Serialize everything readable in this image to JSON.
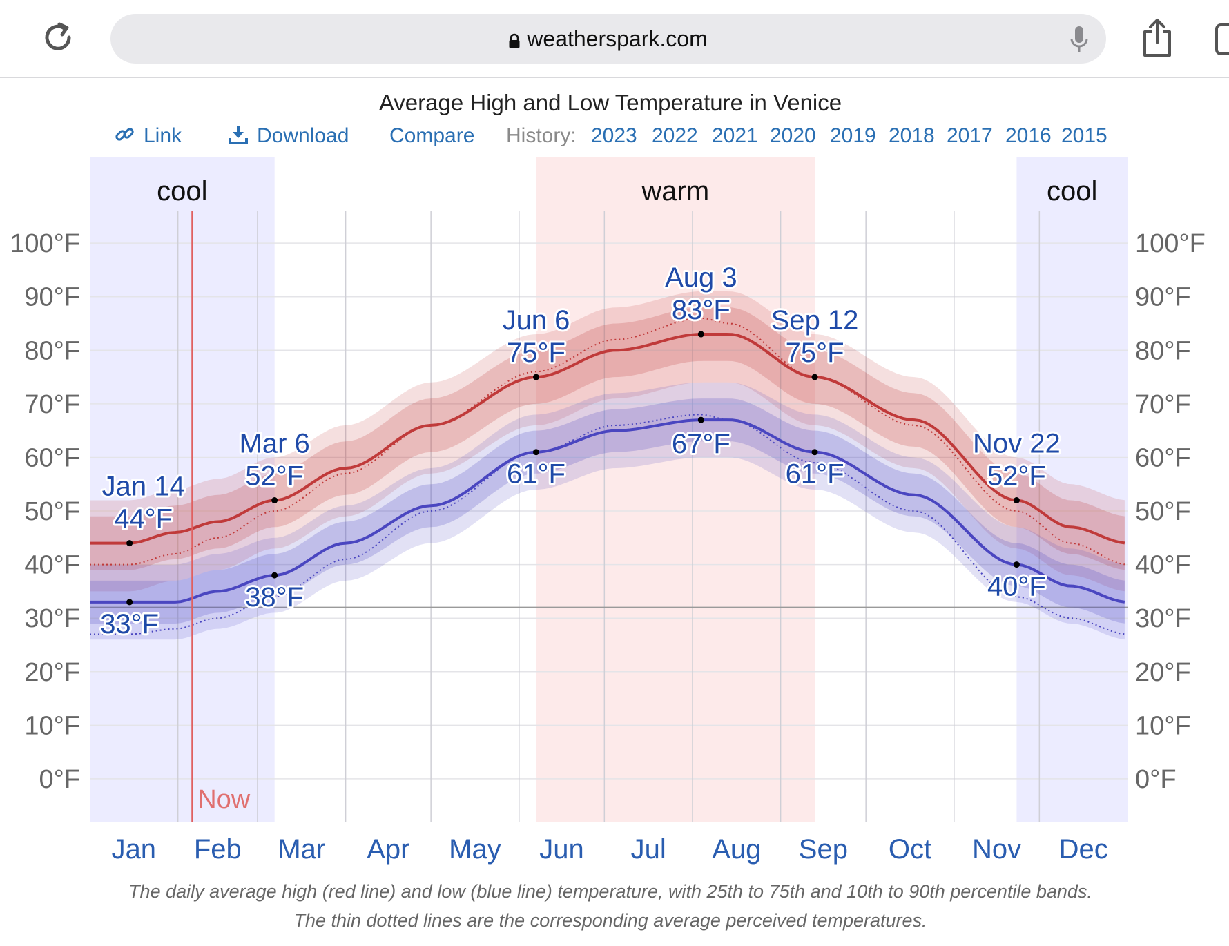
{
  "browser": {
    "url": "weatherspark.com"
  },
  "toolbar": {
    "link_label": "Link",
    "download_label": "Download",
    "compare_label": "Compare",
    "history_label": "History:",
    "years": [
      "2023",
      "2022",
      "2021",
      "2020",
      "2019",
      "2018",
      "2017",
      "2016",
      "2015"
    ]
  },
  "caption": {
    "line1": "The daily average high (red line) and low (blue line) temperature, with 25th to 75th and 10th to 90th percentile bands.",
    "line2": "The thin dotted lines are the corresponding average perceived temperatures."
  },
  "chart_data": {
    "type": "line",
    "title": "Average High and Low Temperature in Venice",
    "x_axis": {
      "unit": "day of year",
      "range": [
        0,
        365
      ],
      "months": [
        "Jan",
        "Feb",
        "Mar",
        "Apr",
        "May",
        "Jun",
        "Jul",
        "Aug",
        "Sep",
        "Oct",
        "Nov",
        "Dec"
      ]
    },
    "y_axis": {
      "range": [
        -8,
        116
      ],
      "ticks": [
        0,
        10,
        20,
        30,
        40,
        50,
        60,
        70,
        80,
        90,
        100
      ],
      "tick_labels": [
        "0°F",
        "10°F",
        "20°F",
        "30°F",
        "40°F",
        "50°F",
        "60°F",
        "70°F",
        "80°F",
        "90°F",
        "100°F"
      ]
    },
    "freezing_line": 32,
    "now_day": 36,
    "now_label": "Now",
    "seasons": [
      {
        "label": "cool",
        "start": 0,
        "end": 65,
        "color": "#ececff"
      },
      {
        "label": "warm",
        "start": 157,
        "end": 255,
        "color": "#fdeaea"
      },
      {
        "label": "cool",
        "start": 326,
        "end": 365,
        "color": "#ececff"
      }
    ],
    "series": [
      {
        "name": "average high",
        "color": "#c03a3a",
        "x": [
          0,
          14,
          30,
          45,
          65,
          90,
          120,
          157,
          185,
          215,
          225,
          255,
          290,
          326,
          345,
          365
        ],
        "values": [
          44,
          44,
          46,
          48,
          52,
          58,
          66,
          75,
          80,
          83,
          83,
          75,
          67,
          52,
          47,
          44
        ],
        "p25": [
          39,
          39,
          41,
          43,
          47,
          53,
          61,
          70,
          75,
          78,
          78,
          70,
          62,
          47,
          42,
          39
        ],
        "p75": [
          49,
          49,
          51,
          53,
          57,
          63,
          71,
          80,
          85,
          88,
          88,
          80,
          72,
          57,
          52,
          49
        ],
        "p10": [
          35,
          35,
          37,
          39,
          43,
          49,
          57,
          66,
          71,
          74,
          74,
          66,
          58,
          43,
          38,
          35
        ],
        "p90": [
          52,
          52,
          54,
          56,
          60,
          66,
          74,
          83,
          88,
          91,
          91,
          83,
          75,
          60,
          55,
          52
        ],
        "feels": [
          40,
          40,
          42,
          45,
          50,
          57,
          66,
          76,
          82,
          86,
          85,
          75,
          66,
          50,
          44,
          40
        ]
      },
      {
        "name": "average low",
        "color": "#4a46c0",
        "x": [
          0,
          14,
          30,
          45,
          65,
          90,
          120,
          157,
          185,
          215,
          225,
          255,
          290,
          326,
          345,
          365
        ],
        "values": [
          33,
          33,
          33,
          35,
          38,
          44,
          51,
          61,
          65,
          67,
          67,
          61,
          53,
          40,
          36,
          33
        ],
        "p25": [
          29,
          29,
          29,
          31,
          34,
          40,
          47,
          57,
          61,
          63,
          63,
          57,
          49,
          36,
          32,
          29
        ],
        "p75": [
          37,
          37,
          37,
          39,
          42,
          48,
          55,
          65,
          69,
          71,
          71,
          65,
          57,
          44,
          40,
          37
        ],
        "p10": [
          26,
          26,
          26,
          28,
          31,
          37,
          44,
          54,
          58,
          60,
          60,
          54,
          46,
          33,
          29,
          26
        ],
        "p90": [
          40,
          40,
          40,
          42,
          45,
          51,
          58,
          68,
          72,
          74,
          74,
          68,
          60,
          47,
          43,
          40
        ],
        "feels": [
          27,
          27,
          28,
          30,
          34,
          41,
          50,
          61,
          66,
          68,
          67,
          59,
          50,
          34,
          30,
          27
        ]
      }
    ],
    "annotations": [
      {
        "series": "average high",
        "day": 14,
        "date": "Jan 14",
        "value": 44,
        "label": "44°F"
      },
      {
        "series": "average high",
        "day": 65,
        "date": "Mar 6",
        "value": 52,
        "label": "52°F"
      },
      {
        "series": "average high",
        "day": 157,
        "date": "Jun 6",
        "value": 75,
        "label": "75°F"
      },
      {
        "series": "average high",
        "day": 215,
        "date": "Aug 3",
        "value": 83,
        "label": "83°F"
      },
      {
        "series": "average high",
        "day": 255,
        "date": "Sep 12",
        "value": 75,
        "label": "75°F"
      },
      {
        "series": "average high",
        "day": 326,
        "date": "Nov 22",
        "value": 52,
        "label": "52°F"
      },
      {
        "series": "average low",
        "day": 14,
        "value": 33,
        "label": "33°F"
      },
      {
        "series": "average low",
        "day": 65,
        "value": 38,
        "label": "38°F"
      },
      {
        "series": "average low",
        "day": 157,
        "value": 61,
        "label": "61°F"
      },
      {
        "series": "average low",
        "day": 215,
        "value": 67,
        "label": "67°F"
      },
      {
        "series": "average low",
        "day": 255,
        "value": 61,
        "label": "61°F"
      },
      {
        "series": "average low",
        "day": 326,
        "value": 40,
        "label": "40°F"
      }
    ]
  }
}
